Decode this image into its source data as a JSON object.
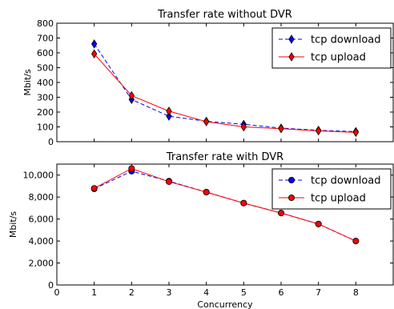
{
  "chart_data": [
    {
      "type": "line",
      "title": "Transfer rate without DVR",
      "xlabel": "",
      "ylabel": "Mbit/s",
      "xlim": [
        0,
        9
      ],
      "ylim": [
        0,
        800
      ],
      "yticks": [
        0,
        100,
        200,
        300,
        400,
        500,
        600,
        700,
        800
      ],
      "yticklabels": [
        "0",
        "100",
        "200",
        "300",
        "400",
        "500",
        "600",
        "700",
        "800"
      ],
      "grid": false,
      "legend_position": "top-right",
      "x": [
        1,
        2,
        3,
        4,
        5,
        6,
        7,
        8
      ],
      "series": [
        {
          "name": "tcp download",
          "marker": "diamond",
          "linestyle": "dashed",
          "color": "#0000ff",
          "values": [
            660,
            285,
            172,
            138,
            117,
            92,
            77,
            68
          ]
        },
        {
          "name": "tcp upload",
          "marker": "diamond",
          "linestyle": "solid",
          "color": "#ff0000",
          "values": [
            593,
            311,
            206,
            135,
            100,
            88,
            73,
            63
          ]
        }
      ]
    },
    {
      "type": "line",
      "title": "Transfer rate with DVR",
      "xlabel": "Concurrency",
      "ylabel": "Mbit/s",
      "xlim": [
        0,
        9
      ],
      "ylim": [
        0,
        11000
      ],
      "xticks": [
        0,
        1,
        2,
        3,
        4,
        5,
        6,
        7,
        8
      ],
      "yticks": [
        0,
        2000,
        4000,
        6000,
        8000,
        10000
      ],
      "yticklabels": [
        "0",
        "2,000",
        "4,000",
        "6,000",
        "8,000",
        "10,000"
      ],
      "grid": false,
      "legend_position": "top-right",
      "x": [
        1,
        2,
        3,
        4,
        5,
        6,
        7,
        8
      ],
      "series": [
        {
          "name": "tcp download",
          "marker": "circle",
          "linestyle": "dashed",
          "color": "#0000ff",
          "values": [
            8750,
            10350,
            9450,
            8450,
            7450,
            6550,
            5550,
            4000
          ]
        },
        {
          "name": "tcp upload",
          "marker": "circle",
          "linestyle": "solid",
          "color": "#ff0000",
          "values": [
            8800,
            10600,
            9400,
            8450,
            7450,
            6550,
            5550,
            4000
          ]
        }
      ]
    }
  ]
}
